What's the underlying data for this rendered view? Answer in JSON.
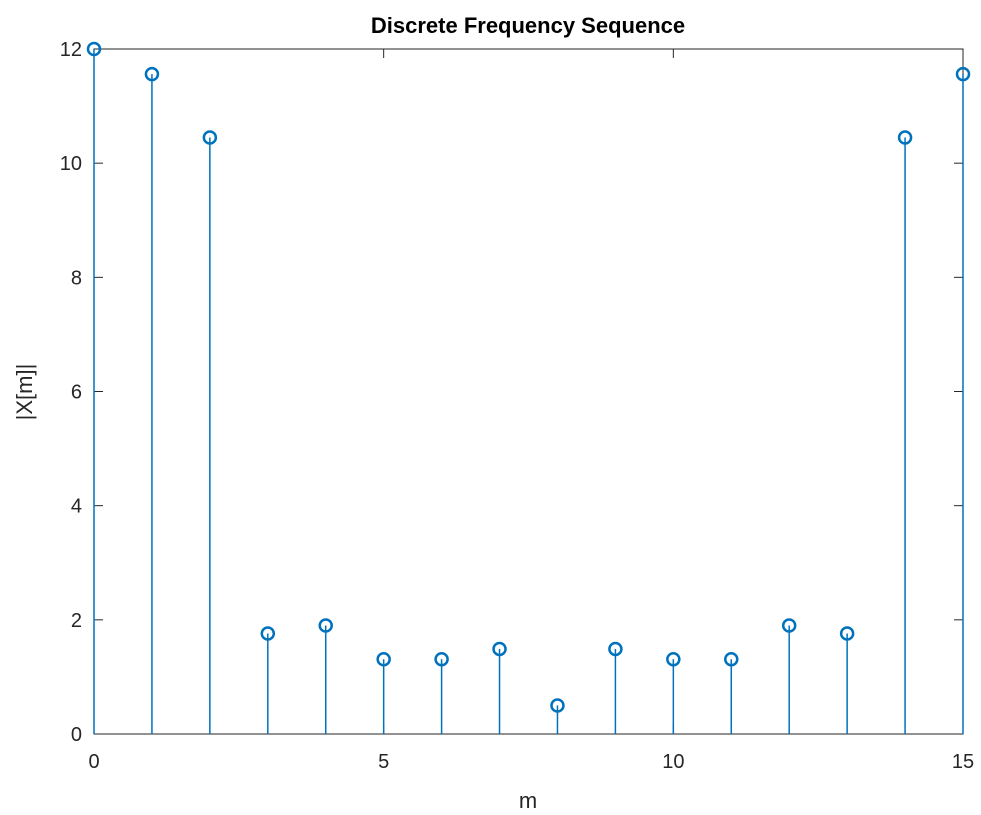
{
  "chart_data": {
    "type": "stem",
    "title": "Discrete Frequency Sequence",
    "xlabel": "m",
    "ylabel": "|X[m]|",
    "xlim": [
      0,
      15
    ],
    "ylim": [
      0,
      12
    ],
    "xticks": [
      0,
      5,
      10,
      15
    ],
    "yticks": [
      0,
      2,
      4,
      6,
      8,
      10,
      12
    ],
    "grid": false,
    "box": true,
    "x": [
      0,
      1,
      2,
      3,
      4,
      5,
      6,
      7,
      8,
      9,
      10,
      11,
      12,
      13,
      14,
      15
    ],
    "values": [
      12.0,
      11.56,
      10.45,
      1.76,
      1.9,
      1.31,
      1.31,
      1.49,
      0.5,
      1.49,
      1.31,
      1.31,
      1.9,
      1.76,
      10.45,
      11.56
    ],
    "colors": {
      "series": "#0072BD",
      "axes": "#262626",
      "title": "#000000"
    }
  }
}
